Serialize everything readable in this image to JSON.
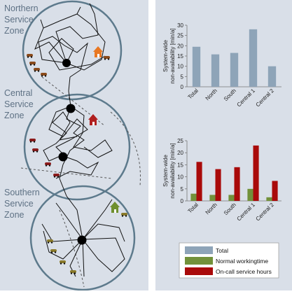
{
  "map": {
    "zones": [
      {
        "label_lines": [
          "Northern",
          "Service",
          "Zone"
        ]
      },
      {
        "label_lines": [
          "Central",
          "Service",
          "Zone"
        ]
      },
      {
        "label_lines": [
          "Southern",
          "Service",
          "Zone"
        ]
      }
    ],
    "colors": {
      "zone_outline": "#5d7a8c",
      "north_house": "#e87722",
      "central_house": "#b01f1f",
      "south_house": "#6f8f2e",
      "route": "#111111"
    }
  },
  "chart_data": [
    {
      "type": "bar",
      "categories": [
        "Total",
        "North",
        "South",
        "Central 1",
        "Central 2"
      ],
      "series": [
        {
          "name": "Total",
          "color": "#8ea4b8",
          "values": [
            19.5,
            15.8,
            16.5,
            28,
            10
          ]
        }
      ],
      "ylabel": "System-wide non-availability [min/a]",
      "ylim": [
        0,
        30
      ],
      "yticks": [
        0,
        5,
        10,
        15,
        20,
        25,
        30
      ],
      "grid": false
    },
    {
      "type": "bar",
      "categories": [
        "Total",
        "North",
        "South",
        "Central 1",
        "Central 2"
      ],
      "series": [
        {
          "name": "Normal workingtime",
          "color": "#72913a",
          "values": [
            3,
            2.5,
            2.5,
            5,
            1.5
          ]
        },
        {
          "name": "On-call service hours",
          "color": "#a90a0a",
          "values": [
            16.2,
            13.2,
            14,
            23,
            8.3
          ]
        }
      ],
      "ylabel": "System-wide non-availability [min/a]",
      "ylim": [
        0,
        25
      ],
      "yticks": [
        0,
        5,
        10,
        15,
        20,
        25
      ],
      "grid": false
    }
  ],
  "legend": {
    "items": [
      {
        "name": "Total",
        "color": "#8ea4b8"
      },
      {
        "name": "Normal workingtime",
        "color": "#72913a"
      },
      {
        "name": "On-call service hours",
        "color": "#a90a0a"
      }
    ]
  }
}
